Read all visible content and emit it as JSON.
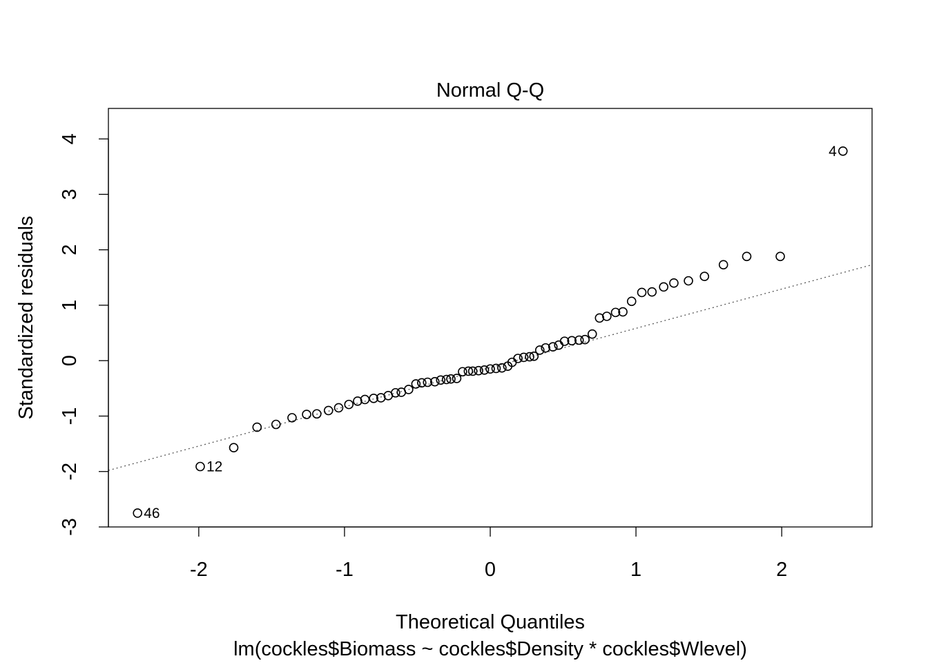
{
  "chart_data": {
    "type": "scatter",
    "title": "Normal Q-Q",
    "xlabel": "Theoretical Quantiles",
    "subtitle": "lm(cockles$Biomass ~ cockles$Density * cockles$Wlevel)",
    "ylabel": "Standardized residuals",
    "xlim": [
      -2.62,
      2.62
    ],
    "ylim": [
      -3.0,
      4.55
    ],
    "x_ticks": [
      -2,
      -1,
      0,
      1,
      2
    ],
    "x_tick_labels": [
      "-2",
      "-1",
      "0",
      "1",
      "2"
    ],
    "y_ticks": [
      -3,
      -2,
      -1,
      0,
      1,
      2,
      3,
      4
    ],
    "y_tick_labels": [
      "-3",
      "-2",
      "-1",
      "0",
      "1",
      "2",
      "3",
      "4"
    ],
    "grid": false,
    "reference_line": {
      "style": "dotted",
      "points": [
        [
          -2.62,
          -1.98
        ],
        [
          2.62,
          1.73
        ]
      ]
    },
    "points": [
      [
        -2.42,
        -2.75
      ],
      [
        -1.99,
        -1.91
      ],
      [
        -1.76,
        -1.57
      ],
      [
        -1.6,
        -1.2
      ],
      [
        -1.47,
        -1.15
      ],
      [
        -1.36,
        -1.03
      ],
      [
        -1.26,
        -0.97
      ],
      [
        -1.19,
        -0.96
      ],
      [
        -1.11,
        -0.9
      ],
      [
        -1.04,
        -0.85
      ],
      [
        -0.97,
        -0.79
      ],
      [
        -0.91,
        -0.73
      ],
      [
        -0.86,
        -0.7
      ],
      [
        -0.8,
        -0.68
      ],
      [
        -0.75,
        -0.67
      ],
      [
        -0.7,
        -0.63
      ],
      [
        -0.65,
        -0.58
      ],
      [
        -0.61,
        -0.57
      ],
      [
        -0.56,
        -0.52
      ],
      [
        -0.51,
        -0.42
      ],
      [
        -0.47,
        -0.4
      ],
      [
        -0.43,
        -0.39
      ],
      [
        -0.38,
        -0.38
      ],
      [
        -0.34,
        -0.35
      ],
      [
        -0.3,
        -0.34
      ],
      [
        -0.27,
        -0.33
      ],
      [
        -0.23,
        -0.32
      ],
      [
        -0.19,
        -0.2
      ],
      [
        -0.15,
        -0.19
      ],
      [
        -0.12,
        -0.19
      ],
      [
        -0.08,
        -0.18
      ],
      [
        -0.04,
        -0.17
      ],
      [
        0.0,
        -0.15
      ],
      [
        0.04,
        -0.14
      ],
      [
        0.08,
        -0.13
      ],
      [
        0.12,
        -0.1
      ],
      [
        0.15,
        -0.03
      ],
      [
        0.19,
        0.04
      ],
      [
        0.23,
        0.06
      ],
      [
        0.27,
        0.07
      ],
      [
        0.3,
        0.08
      ],
      [
        0.34,
        0.19
      ],
      [
        0.38,
        0.23
      ],
      [
        0.43,
        0.25
      ],
      [
        0.47,
        0.28
      ],
      [
        0.51,
        0.35
      ],
      [
        0.56,
        0.36
      ],
      [
        0.61,
        0.37
      ],
      [
        0.65,
        0.38
      ],
      [
        0.7,
        0.48
      ],
      [
        0.75,
        0.77
      ],
      [
        0.8,
        0.8
      ],
      [
        0.86,
        0.87
      ],
      [
        0.91,
        0.88
      ],
      [
        0.97,
        1.07
      ],
      [
        1.04,
        1.23
      ],
      [
        1.11,
        1.24
      ],
      [
        1.19,
        1.33
      ],
      [
        1.26,
        1.4
      ],
      [
        1.36,
        1.44
      ],
      [
        1.47,
        1.52
      ],
      [
        1.6,
        1.73
      ],
      [
        1.76,
        1.88
      ],
      [
        1.99,
        1.88
      ],
      [
        2.42,
        3.78
      ]
    ],
    "labeled_points": [
      {
        "label": "46",
        "x": -2.42,
        "y": -2.75,
        "side": "right"
      },
      {
        "label": "12",
        "x": -1.99,
        "y": -1.91,
        "side": "right"
      },
      {
        "label": "4",
        "x": 2.42,
        "y": 3.78,
        "side": "left"
      }
    ]
  }
}
